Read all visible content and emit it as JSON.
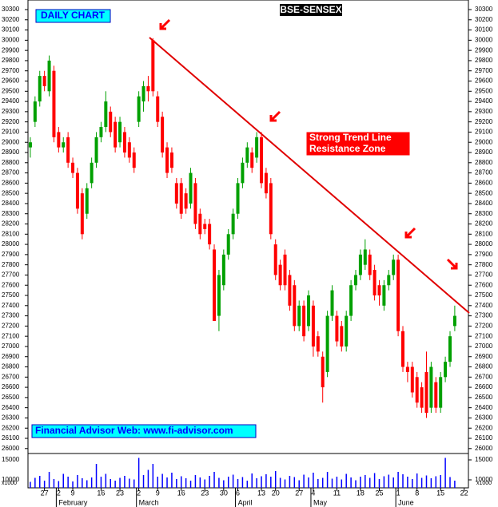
{
  "chart_data": {
    "type": "candlestick",
    "title": "BSE-SENSEX",
    "subtitle": "DAILY CHART",
    "annotation": [
      "Strong Trend Line",
      "Resistance Zone"
    ],
    "footer": "Financial Advisor Web: www.fi-advisor.com",
    "volume_unit": "x1000",
    "up_color": "#00a000",
    "down_color": "#ff0000",
    "volume_color": "#0000ff",
    "xlim": [
      -0.5,
      92.9
    ],
    "ylim": [
      26000,
      30300
    ],
    "yticks": [
      30300,
      30200,
      30100,
      30000,
      29900,
      29800,
      29700,
      29600,
      29500,
      29400,
      29300,
      29200,
      29100,
      29000,
      28900,
      28800,
      28700,
      28600,
      28500,
      28400,
      28300,
      28200,
      28100,
      28000,
      27900,
      27800,
      27700,
      27600,
      27500,
      27400,
      27300,
      27200,
      27100,
      27000,
      26900,
      26800,
      26700,
      26600,
      26500,
      26400,
      26300,
      26200,
      26100,
      26000
    ],
    "vlim": [
      8000,
      16600
    ],
    "vticks": [
      15000,
      10000
    ],
    "xticks": [
      {
        "value": 3,
        "label": "27"
      },
      {
        "value": 6,
        "label": "2"
      },
      {
        "value": 9,
        "label": "9"
      },
      {
        "value": 15,
        "label": "16"
      },
      {
        "value": 19,
        "label": "23"
      },
      {
        "value": 23,
        "label": "2"
      },
      {
        "value": 27,
        "label": "9"
      },
      {
        "value": 32,
        "label": "16"
      },
      {
        "value": 37,
        "label": "23"
      },
      {
        "value": 41,
        "label": "30"
      },
      {
        "value": 44,
        "label": "6"
      },
      {
        "value": 49,
        "label": "13"
      },
      {
        "value": 52,
        "label": "20"
      },
      {
        "value": 57,
        "label": "27"
      },
      {
        "value": 60,
        "label": "4"
      },
      {
        "value": 65,
        "label": "11"
      },
      {
        "value": 70,
        "label": "18"
      },
      {
        "value": 74,
        "label": "25"
      },
      {
        "value": 78,
        "label": "1"
      },
      {
        "value": 82,
        "label": "8"
      },
      {
        "value": 87,
        "label": "15"
      },
      {
        "value": 92,
        "label": "22"
      }
    ],
    "month_ticks": [
      {
        "value": 5.5,
        "label": "February"
      },
      {
        "value": 22.5,
        "label": "March"
      },
      {
        "value": 43.5,
        "label": "April"
      },
      {
        "value": 59.5,
        "label": "May"
      },
      {
        "value": 77.5,
        "label": "June"
      }
    ],
    "ohlc": [
      [
        28950,
        29050,
        28850,
        29000
      ],
      [
        29200,
        29450,
        29150,
        29400
      ],
      [
        29400,
        29700,
        29350,
        29650
      ],
      [
        29650,
        29700,
        29500,
        29550
      ],
      [
        29500,
        29850,
        29450,
        29800
      ],
      [
        29700,
        29750,
        29000,
        29050
      ],
      [
        29100,
        29150,
        28900,
        28950
      ],
      [
        28950,
        29050,
        28900,
        29000
      ],
      [
        29050,
        29100,
        28750,
        28800
      ],
      [
        28800,
        28850,
        28650,
        28700
      ],
      [
        28700,
        28750,
        28300,
        28350
      ],
      [
        28500,
        28550,
        28050,
        28100
      ],
      [
        28300,
        28600,
        28250,
        28550
      ],
      [
        28600,
        28850,
        28550,
        28800
      ],
      [
        28800,
        29100,
        28750,
        29050
      ],
      [
        29050,
        29200,
        29000,
        29150
      ],
      [
        29150,
        29500,
        29100,
        29400
      ],
      [
        29300,
        29350,
        29050,
        29100
      ],
      [
        29200,
        29250,
        28900,
        28950
      ],
      [
        29000,
        29250,
        28950,
        29200
      ],
      [
        29100,
        29150,
        28850,
        28900
      ],
      [
        29000,
        29050,
        28800,
        28850
      ],
      [
        28900,
        28950,
        28700,
        28750
      ],
      [
        29200,
        29500,
        29150,
        29450
      ],
      [
        29400,
        29600,
        29300,
        29550
      ],
      [
        29550,
        29650,
        29400,
        29500
      ],
      [
        30000,
        30020,
        29450,
        29500
      ],
      [
        29450,
        29500,
        29150,
        29200
      ],
      [
        29250,
        29300,
        28850,
        28900
      ],
      [
        28950,
        29000,
        28650,
        28700
      ],
      [
        28900,
        28950,
        28700,
        28750
      ],
      [
        28600,
        28650,
        28350,
        28400
      ],
      [
        28600,
        28650,
        28250,
        28300
      ],
      [
        28500,
        28550,
        28300,
        28350
      ],
      [
        28400,
        28750,
        28350,
        28700
      ],
      [
        28600,
        28650,
        28150,
        28200
      ],
      [
        28300,
        28350,
        28050,
        28100
      ],
      [
        28200,
        28250,
        28100,
        28150
      ],
      [
        28200,
        28250,
        27950,
        28000
      ],
      [
        27950,
        28000,
        27250,
        27250
      ],
      [
        27300,
        27750,
        27150,
        27700
      ],
      [
        27600,
        27950,
        27550,
        27900
      ],
      [
        27900,
        28150,
        27850,
        28100
      ],
      [
        28100,
        28350,
        28050,
        28300
      ],
      [
        28300,
        28650,
        28250,
        28600
      ],
      [
        28600,
        28850,
        28550,
        28800
      ],
      [
        28800,
        29000,
        28750,
        28950
      ],
      [
        28900,
        28950,
        28700,
        28750
      ],
      [
        28850,
        29100,
        28800,
        29050
      ],
      [
        29050,
        29100,
        28550,
        28600
      ],
      [
        28700,
        28750,
        28450,
        28500
      ],
      [
        28600,
        28650,
        28050,
        28100
      ],
      [
        28000,
        28050,
        27650,
        27700
      ],
      [
        27800,
        27850,
        27550,
        27600
      ],
      [
        27900,
        27950,
        27550,
        27600
      ],
      [
        27700,
        27750,
        27350,
        27400
      ],
      [
        27600,
        27650,
        27150,
        27200
      ],
      [
        27200,
        27450,
        27150,
        27400
      ],
      [
        27400,
        27450,
        27050,
        27100
      ],
      [
        27200,
        27550,
        27150,
        27500
      ],
      [
        27400,
        27450,
        26900,
        27000
      ],
      [
        27100,
        27150,
        26900,
        26950
      ],
      [
        26900,
        26950,
        26450,
        26600
      ],
      [
        26750,
        27350,
        26700,
        27300
      ],
      [
        27300,
        27600,
        27250,
        27550
      ],
      [
        27300,
        27350,
        27000,
        27050
      ],
      [
        27200,
        27250,
        26950,
        27000
      ],
      [
        27000,
        27350,
        26950,
        27300
      ],
      [
        27300,
        27650,
        27250,
        27600
      ],
      [
        27600,
        27750,
        27550,
        27700
      ],
      [
        27700,
        27950,
        27650,
        27900
      ],
      [
        27800,
        28050,
        27750,
        27950
      ],
      [
        27900,
        27950,
        27650,
        27700
      ],
      [
        27750,
        27800,
        27450,
        27500
      ],
      [
        27600,
        27650,
        27400,
        27500
      ],
      [
        27400,
        27650,
        27350,
        27600
      ],
      [
        27600,
        27750,
        27550,
        27700
      ],
      [
        27700,
        27900,
        27650,
        27850
      ],
      [
        27850,
        27900,
        27100,
        27150
      ],
      [
        27150,
        27200,
        26750,
        26800
      ],
      [
        26800,
        26850,
        26650,
        26750
      ],
      [
        26800,
        26850,
        26500,
        26550
      ],
      [
        26700,
        26750,
        26400,
        26450
      ],
      [
        26600,
        26650,
        26350,
        26400
      ],
      [
        26750,
        26950,
        26300,
        26350
      ],
      [
        26400,
        26850,
        26350,
        26800
      ],
      [
        26650,
        26700,
        26350,
        26400
      ],
      [
        26400,
        26750,
        26350,
        26700
      ],
      [
        26700,
        26900,
        26650,
        26850
      ],
      [
        26850,
        27150,
        26800,
        27100
      ],
      [
        27200,
        27400,
        27150,
        27300
      ]
    ],
    "volume": [
      9500,
      10500,
      11000,
      9800,
      12000,
      10200,
      9700,
      11500,
      10800,
      9600,
      11200,
      10400,
      9900,
      10600,
      14000,
      10800,
      11500,
      10200,
      9800,
      10500,
      11000,
      10300,
      10100,
      15500,
      11200,
      12500,
      14000,
      10800,
      11500,
      10600,
      11800,
      10200,
      10900,
      10400,
      9800,
      11200,
      10600,
      10100,
      11000,
      12000,
      10500,
      9900,
      10800,
      11300,
      10200,
      10700,
      9800,
      11600,
      10400,
      10900,
      11400,
      10800,
      12200,
      10500,
      10100,
      11000,
      10700,
      9900,
      11300,
      10600,
      11800,
      10200,
      10500,
      12000,
      10300,
      10800,
      10100,
      11500,
      10600,
      9900,
      10800,
      11200,
      10500,
      11700,
      10200,
      10900,
      11300,
      10600,
      12000,
      11400,
      10800,
      10200,
      11600,
      10500,
      11100,
      10400,
      10900,
      11200,
      15500,
      10700,
      9800
    ]
  }
}
